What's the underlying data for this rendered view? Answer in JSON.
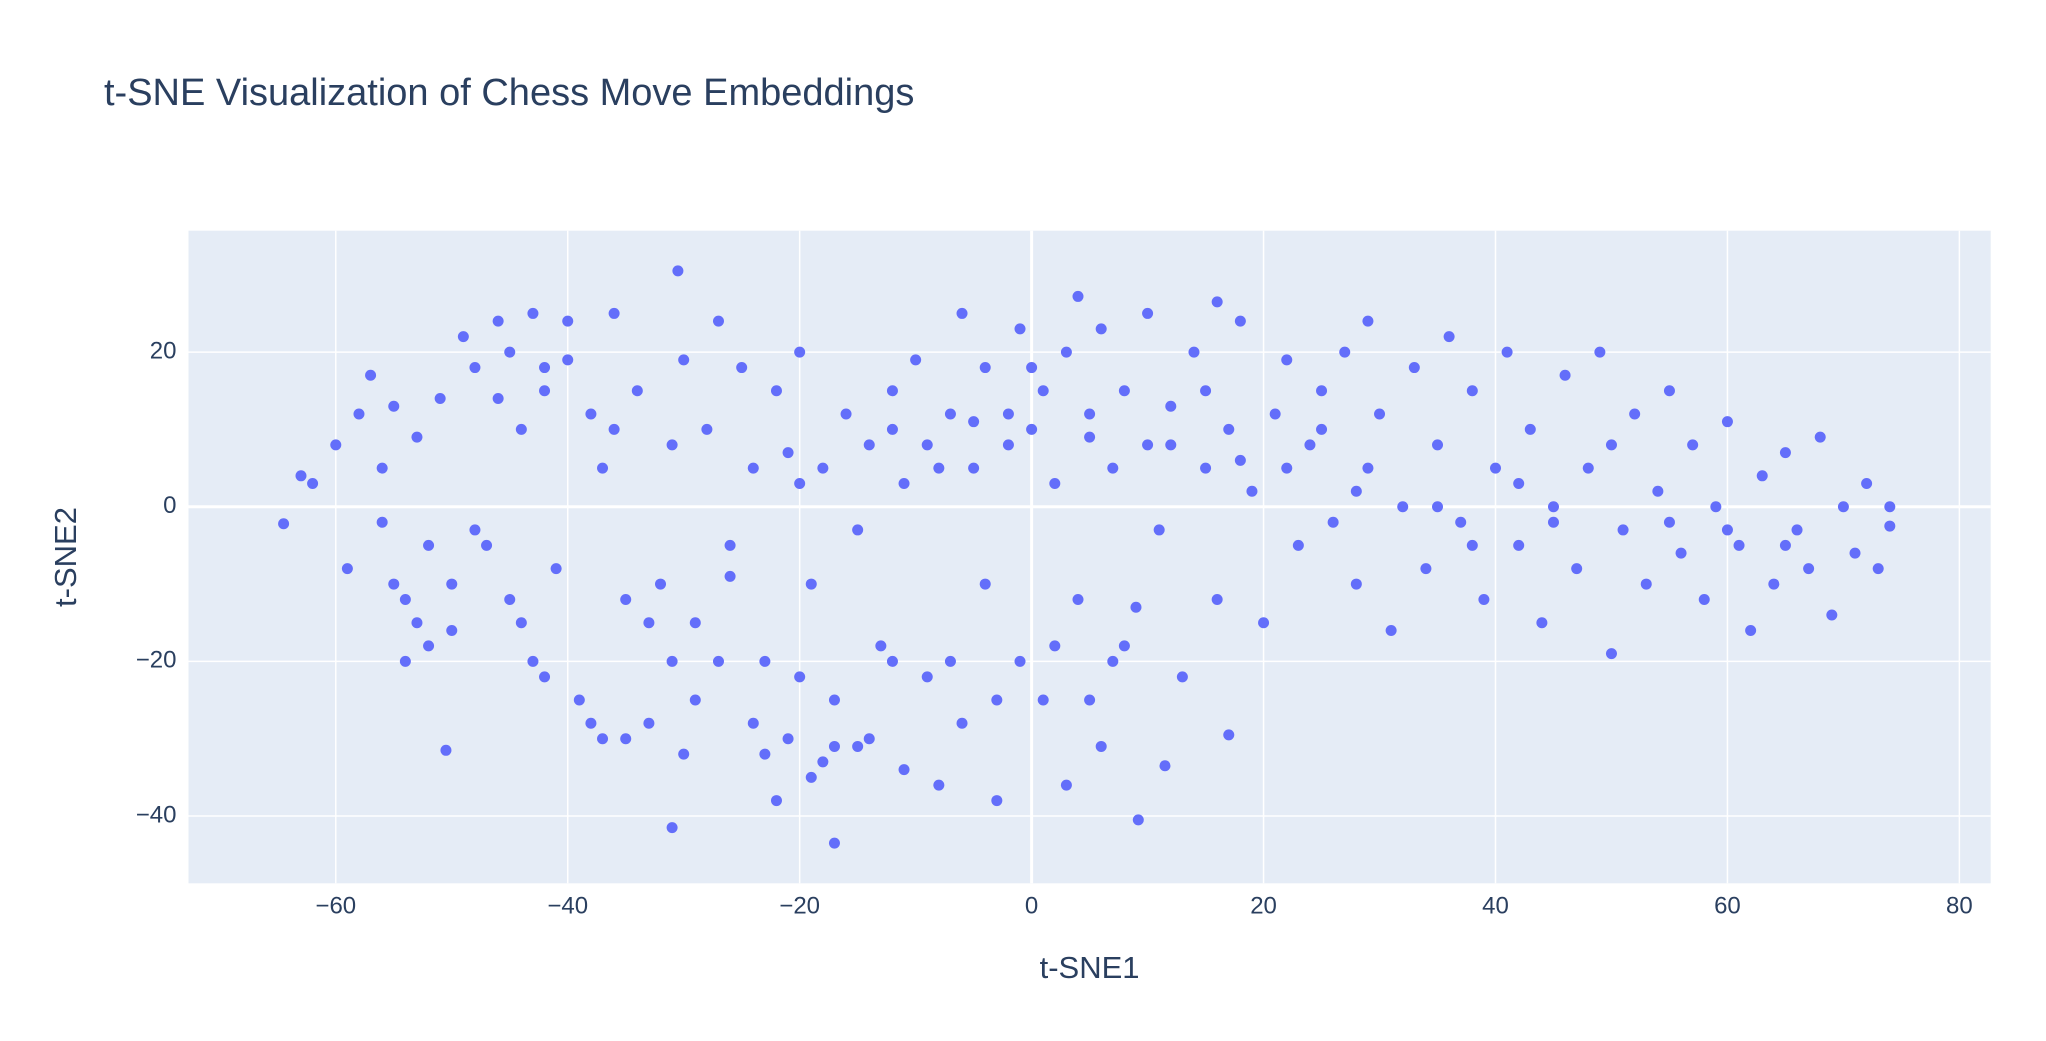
{
  "chart_data": {
    "type": "scatter",
    "title": "t-SNE Visualization of Chess Move Embeddings",
    "x_label": "t-SNE1",
    "y_label": "t-SNE2",
    "color": "#636efa",
    "grid": true,
    "xlim": [
      -72.7,
      82.7
    ],
    "ylim": [
      -48.7,
      35.7
    ],
    "xticks": [
      {
        "value": -60,
        "label": "−60"
      },
      {
        "value": -40,
        "label": "−40"
      },
      {
        "value": -20,
        "label": "−20"
      },
      0,
      20,
      40,
      60,
      80
    ],
    "yticks": [
      {
        "value": -40,
        "label": "−40"
      },
      {
        "value": -20,
        "label": "−20"
      },
      0,
      20
    ],
    "x": [
      -64.5,
      -30.5,
      -50.5,
      9.2,
      -31,
      -17,
      17,
      11.5,
      74,
      4,
      16,
      -63,
      -62,
      -60,
      -59,
      -58,
      -57,
      -56,
      -55,
      -55,
      -54,
      -53,
      -53,
      -52,
      -51,
      -50,
      -49,
      -48,
      -47,
      -46,
      -45,
      -45,
      -44,
      -43,
      -43,
      -42,
      -41,
      -40,
      -40,
      -39,
      -38,
      -37,
      -37,
      -36,
      -35,
      -34,
      -33,
      -32,
      -31,
      -30,
      -30,
      -29,
      -28,
      -27,
      -27,
      -26,
      -25,
      -24,
      -24,
      -23,
      -22,
      -22,
      -21,
      -20,
      -20,
      -19,
      -18,
      -18,
      -17,
      -16,
      -15,
      -15,
      -14,
      -13,
      -12,
      -11,
      -11,
      -10,
      -9,
      -9,
      -8,
      -7,
      -6,
      -6,
      -5,
      -4,
      -4,
      -3,
      -2,
      -1,
      -1,
      0,
      1,
      1,
      2,
      3,
      3,
      4,
      5,
      6,
      6,
      7,
      8,
      8,
      9,
      10,
      10,
      11,
      12,
      13,
      14,
      15,
      16,
      17,
      18,
      19,
      20,
      21,
      22,
      23,
      24,
      25,
      26,
      27,
      28,
      29,
      29,
      30,
      31,
      32,
      33,
      34,
      35,
      36,
      37,
      38,
      39,
      40,
      41,
      42,
      43,
      44,
      45,
      46,
      47,
      48,
      49,
      50,
      51,
      52,
      53,
      54,
      55,
      56,
      57,
      58,
      59,
      60,
      61,
      62,
      63,
      64,
      65,
      66,
      67,
      68,
      69,
      70,
      71,
      72,
      73,
      74,
      -54,
      -52,
      -48,
      -44,
      -42,
      -38,
      -35,
      -33,
      -31,
      -29,
      -26,
      -23,
      -21,
      -19,
      -17,
      -14,
      -12,
      -7,
      -3,
      2,
      5,
      7,
      -20,
      -12,
      -5,
      0,
      5,
      12,
      18,
      22,
      28,
      35,
      45,
      55,
      60,
      65,
      42,
      50,
      38,
      25,
      15,
      -8,
      -2,
      -36,
      -42,
      -46,
      -50,
      -56
    ],
    "y": [
      -2.2,
      30.5,
      -31.5,
      -40.5,
      -41.5,
      -43.5,
      -29.5,
      -33.5,
      -2.5,
      27.2,
      26.5,
      4,
      3,
      8,
      -8,
      12,
      17,
      5,
      -10,
      13,
      -20,
      -15,
      9,
      -5,
      14,
      -10,
      22,
      18,
      -5,
      24,
      20,
      -12,
      10,
      25,
      -20,
      15,
      -8,
      24,
      19,
      -25,
      12,
      -30,
      5,
      25,
      -12,
      15,
      -28,
      -10,
      8,
      -32,
      19,
      -15,
      10,
      24,
      -20,
      -5,
      18,
      -28,
      5,
      -32,
      15,
      -38,
      7,
      -22,
      20,
      -10,
      -33,
      5,
      -25,
      12,
      -31,
      -3,
      8,
      -18,
      15,
      -34,
      3,
      19,
      -22,
      8,
      -36,
      12,
      -28,
      25,
      5,
      -10,
      18,
      -38,
      8,
      -20,
      23,
      10,
      -25,
      15,
      3,
      -36,
      20,
      -12,
      9,
      -31,
      23,
      5,
      -18,
      15,
      -13,
      8,
      25,
      -3,
      13,
      -22,
      20,
      5,
      -12,
      10,
      24,
      2,
      -15,
      12,
      19,
      -5,
      8,
      15,
      -2,
      20,
      -10,
      5,
      24,
      12,
      -16,
      0,
      18,
      -8,
      8,
      22,
      -2,
      15,
      -12,
      5,
      20,
      -5,
      10,
      -15,
      0,
      17,
      -8,
      5,
      20,
      -19,
      -3,
      12,
      -10,
      2,
      15,
      -6,
      8,
      -12,
      0,
      11,
      -5,
      -16,
      4,
      -10,
      7,
      -3,
      -8,
      9,
      -14,
      0,
      -6,
      3,
      -8,
      0,
      -12,
      -18,
      -3,
      -15,
      -22,
      -28,
      -30,
      -15,
      -20,
      -25,
      -9,
      -20,
      -30,
      -35,
      -31,
      -30,
      -20,
      -20,
      -25,
      -18,
      -25,
      -20,
      3,
      10,
      11,
      18,
      12,
      8,
      6,
      5,
      2,
      0,
      -2,
      -2,
      -3,
      -5,
      3,
      8,
      -5,
      10,
      15,
      5,
      12,
      10,
      18,
      14,
      -16,
      -2
    ]
  }
}
